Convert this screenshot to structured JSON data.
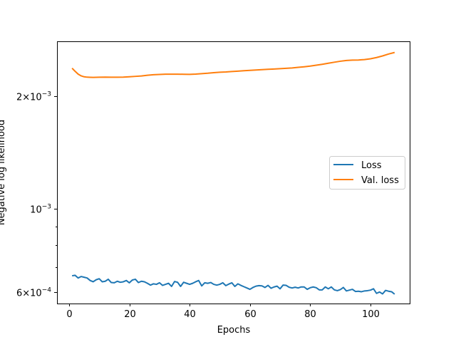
{
  "chart_data": {
    "type": "line",
    "xlabel": "Epochs",
    "ylabel": "Negative log likelihood",
    "xlim": [
      -4,
      113
    ],
    "ylim": [
      0.00056,
      0.0028
    ],
    "yscale": "log",
    "xticks": [
      0,
      20,
      40,
      60,
      80,
      100
    ],
    "yticks": [
      {
        "value": 0.0006,
        "mant": "6",
        "exp": "−4"
      },
      {
        "value": 0.001,
        "mant": "",
        "exp": "−3"
      },
      {
        "value": 0.002,
        "mant": "2",
        "exp": "−3"
      }
    ],
    "grid": false,
    "legend_position": "center-right",
    "series": [
      {
        "name": "Loss",
        "color": "#1f77b4",
        "x": [
          1,
          2,
          3,
          4,
          5,
          6,
          7,
          8,
          9,
          10,
          11,
          12,
          13,
          14,
          15,
          16,
          17,
          18,
          19,
          20,
          21,
          22,
          23,
          24,
          25,
          26,
          27,
          28,
          29,
          30,
          31,
          32,
          33,
          34,
          35,
          36,
          37,
          38,
          39,
          40,
          41,
          42,
          43,
          44,
          45,
          46,
          47,
          48,
          49,
          50,
          51,
          52,
          53,
          54,
          55,
          56,
          57,
          58,
          59,
          60,
          61,
          62,
          63,
          64,
          65,
          66,
          67,
          68,
          69,
          70,
          71,
          72,
          73,
          74,
          75,
          76,
          77,
          78,
          79,
          80,
          81,
          82,
          83,
          84,
          85,
          86,
          87,
          88,
          89,
          90,
          91,
          92,
          93,
          94,
          95,
          96,
          97,
          98,
          99,
          100,
          101,
          102,
          103,
          104,
          105,
          106,
          107,
          108
        ],
        "values": [
          0.000664,
          0.000666,
          0.000655,
          0.000661,
          0.000658,
          0.000655,
          0.000645,
          0.00064,
          0.000648,
          0.000652,
          0.00064,
          0.000642,
          0.00065,
          0.000637,
          0.000636,
          0.000642,
          0.000638,
          0.00064,
          0.000645,
          0.000636,
          0.000647,
          0.00065,
          0.000637,
          0.000642,
          0.00064,
          0.000634,
          0.000627,
          0.000632,
          0.00063,
          0.000636,
          0.000626,
          0.00063,
          0.000634,
          0.000622,
          0.000641,
          0.000638,
          0.000622,
          0.000638,
          0.000634,
          0.00063,
          0.000634,
          0.00064,
          0.000645,
          0.000624,
          0.000636,
          0.000634,
          0.000637,
          0.00063,
          0.000627,
          0.00063,
          0.000636,
          0.000625,
          0.000631,
          0.000636,
          0.000622,
          0.000632,
          0.000626,
          0.000621,
          0.000616,
          0.000611,
          0.000618,
          0.000623,
          0.000625,
          0.000624,
          0.000618,
          0.000626,
          0.000615,
          0.00062,
          0.000623,
          0.000613,
          0.000627,
          0.000626,
          0.000619,
          0.000616,
          0.000619,
          0.000616,
          0.00062,
          0.00062,
          0.000611,
          0.000617,
          0.00062,
          0.000617,
          0.000609,
          0.000609,
          0.00062,
          0.000613,
          0.00062,
          0.000609,
          0.000606,
          0.00061,
          0.000618,
          0.000605,
          0.000608,
          0.000611,
          0.000603,
          0.000604,
          0.000602,
          0.000605,
          0.000606,
          0.000608,
          0.000613,
          0.000596,
          0.000601,
          0.000594,
          0.000607,
          0.000604,
          0.000602,
          0.000593
        ]
      },
      {
        "name": "Val. loss",
        "color": "#ff7f0e",
        "x": [
          1,
          2,
          3,
          4,
          5,
          6,
          7,
          8,
          9,
          10,
          12,
          14,
          16,
          18,
          20,
          22,
          24,
          26,
          28,
          30,
          32,
          34,
          36,
          38,
          40,
          42,
          44,
          46,
          48,
          50,
          52,
          54,
          56,
          58,
          60,
          62,
          64,
          66,
          68,
          70,
          72,
          74,
          76,
          78,
          80,
          82,
          84,
          86,
          88,
          90,
          92,
          94,
          96,
          98,
          100,
          102,
          104,
          106,
          108
        ],
        "values": [
          0.002375,
          0.00233,
          0.00229,
          0.002265,
          0.002252,
          0.002247,
          0.002245,
          0.002244,
          0.002245,
          0.002246,
          0.002247,
          0.002246,
          0.002246,
          0.002247,
          0.002252,
          0.002258,
          0.002264,
          0.002273,
          0.002281,
          0.002285,
          0.002288,
          0.002289,
          0.002289,
          0.002287,
          0.002286,
          0.00229,
          0.002296,
          0.002302,
          0.00231,
          0.002316,
          0.00232,
          0.002326,
          0.002332,
          0.002338,
          0.002343,
          0.002348,
          0.002353,
          0.002358,
          0.002362,
          0.002367,
          0.002372,
          0.002378,
          0.002387,
          0.002395,
          0.002405,
          0.002418,
          0.002432,
          0.002448,
          0.002463,
          0.002478,
          0.00249,
          0.002495,
          0.002497,
          0.002503,
          0.002515,
          0.002535,
          0.00256,
          0.00259,
          0.002615
        ]
      }
    ]
  }
}
